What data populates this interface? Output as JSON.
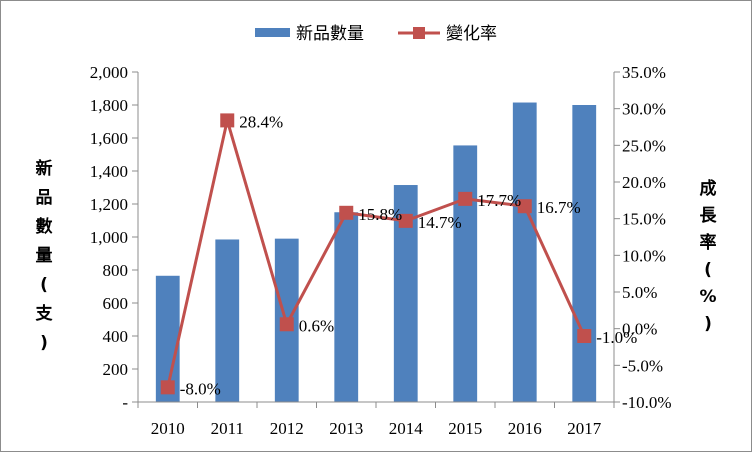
{
  "chart_data": {
    "type": "bar",
    "categories": [
      "2010",
      "2011",
      "2012",
      "2013",
      "2014",
      "2015",
      "2016",
      "2017"
    ],
    "series": [
      {
        "name": "新品數量",
        "type": "bar",
        "axis": "left",
        "color": "#4f81bd",
        "values": [
          765,
          985,
          990,
          1150,
          1315,
          1555,
          1815,
          1800
        ]
      },
      {
        "name": "變化率",
        "type": "line",
        "axis": "right",
        "color": "#c0504d",
        "values": [
          -8.0,
          28.4,
          0.6,
          15.8,
          14.7,
          17.7,
          16.7,
          -1.0
        ],
        "data_labels": [
          "-8.0%",
          "28.4%",
          "0.6%",
          "15.8%",
          "14.7%",
          "17.7%",
          "16.7%",
          "-1.0%"
        ]
      }
    ],
    "ylabel": "新品數量(支)",
    "y2label": "成長率(%)",
    "ylim": [
      0,
      2000
    ],
    "y2lim": [
      -10,
      35
    ],
    "yticks": [
      "-",
      "200",
      "400",
      "600",
      "800",
      "1,000",
      "1,200",
      "1,400",
      "1,600",
      "1,800",
      "2,000"
    ],
    "y2ticks": [
      "-10.0%",
      "-5.0%",
      "0.0%",
      "5.0%",
      "10.0%",
      "15.0%",
      "20.0%",
      "25.0%",
      "30.0%",
      "35.0%"
    ],
    "legend_position": "top",
    "grid": false
  }
}
